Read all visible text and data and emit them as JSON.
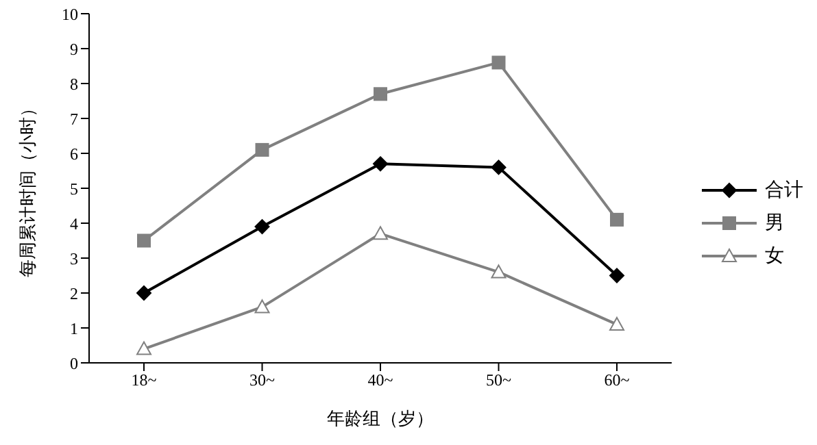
{
  "chart_data": {
    "type": "line",
    "categories": [
      "18~",
      "30~",
      "40~",
      "50~",
      "60~"
    ],
    "xlabel": "年龄组（岁）",
    "ylabel": "每周累计时间（小时）",
    "ylim": [
      0,
      10
    ],
    "yticks": [
      0,
      1,
      2,
      3,
      4,
      5,
      6,
      7,
      8,
      9,
      10
    ],
    "grid": false,
    "legend": "right",
    "series": [
      {
        "name": "合计",
        "color": "#000000",
        "marker": "diamond",
        "values": [
          2.0,
          3.9,
          5.7,
          5.6,
          2.5
        ]
      },
      {
        "name": "男",
        "color": "#808080",
        "marker": "square",
        "values": [
          3.5,
          6.1,
          7.7,
          8.6,
          4.1
        ]
      },
      {
        "name": "女",
        "color": "#808080",
        "marker": "triangle",
        "values": [
          0.4,
          1.6,
          3.7,
          2.6,
          1.1
        ]
      }
    ]
  }
}
